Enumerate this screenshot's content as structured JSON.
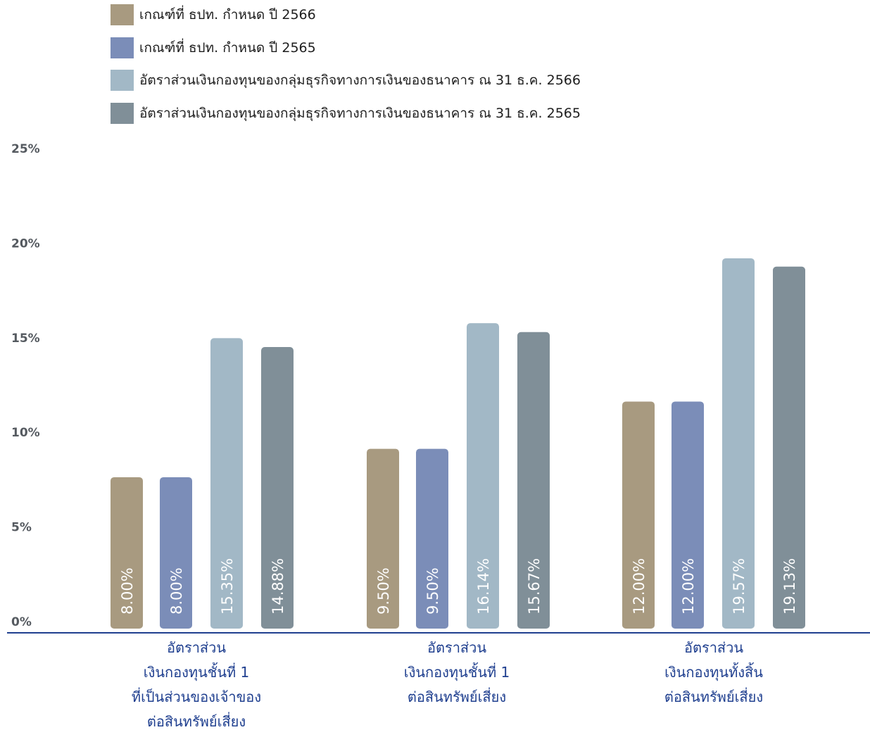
{
  "chart_data": {
    "type": "bar",
    "yticks": [
      "0%",
      "5%",
      "10%",
      "15%",
      "20%",
      "25%"
    ],
    "ylim": [
      0,
      25
    ],
    "grid": false,
    "legend_position": "top-left",
    "categories": [
      [
        "อัตราส่วน",
        "เงินกองทุนชั้นที่ 1",
        "ที่เป็นส่วนของเจ้าของ",
        "ต่อสินทรัพย์เสี่ยง"
      ],
      [
        "อัตราส่วน",
        "เงินกองทุนชั้นที่ 1",
        "ต่อสินทรัพย์เสี่ยง"
      ],
      [
        "อัตราส่วน",
        "เงินกองทุนทั้งสิ้น",
        "ต่อสินทรัพย์เสี่ยง"
      ]
    ],
    "series": [
      {
        "name": "เกณฑ์ที่ ธปท. กำหนด ปี 2566",
        "color": "#a89a80",
        "values": [
          8.0,
          9.5,
          12.0
        ],
        "labels": [
          "8.00%",
          "9.50%",
          "12.00%"
        ]
      },
      {
        "name": "เกณฑ์ที่ ธปท. กำหนด ปี 2565",
        "color": "#7b8db8",
        "values": [
          8.0,
          9.5,
          12.0
        ],
        "labels": [
          "8.00%",
          "9.50%",
          "12.00%"
        ]
      },
      {
        "name": "อัตราส่วนเงินกองทุนของกลุ่มธุรกิจทางการเงินของธนาคาร ณ 31 ธ.ค. 2566",
        "color": "#a2b8c6",
        "values": [
          15.35,
          16.14,
          19.57
        ],
        "labels": [
          "15.35%",
          "16.14%",
          "19.57%"
        ]
      },
      {
        "name": "อัตราส่วนเงินกองทุนของกลุ่มธุรกิจทางการเงินของธนาคาร ณ 31 ธ.ค. 2565",
        "color": "#808f98",
        "values": [
          14.88,
          15.67,
          19.13
        ],
        "labels": [
          "14.88%",
          "15.67%",
          "19.13%"
        ]
      }
    ],
    "axis_color": "#1f3f8f",
    "category_label_color": "#1f3f8f"
  }
}
